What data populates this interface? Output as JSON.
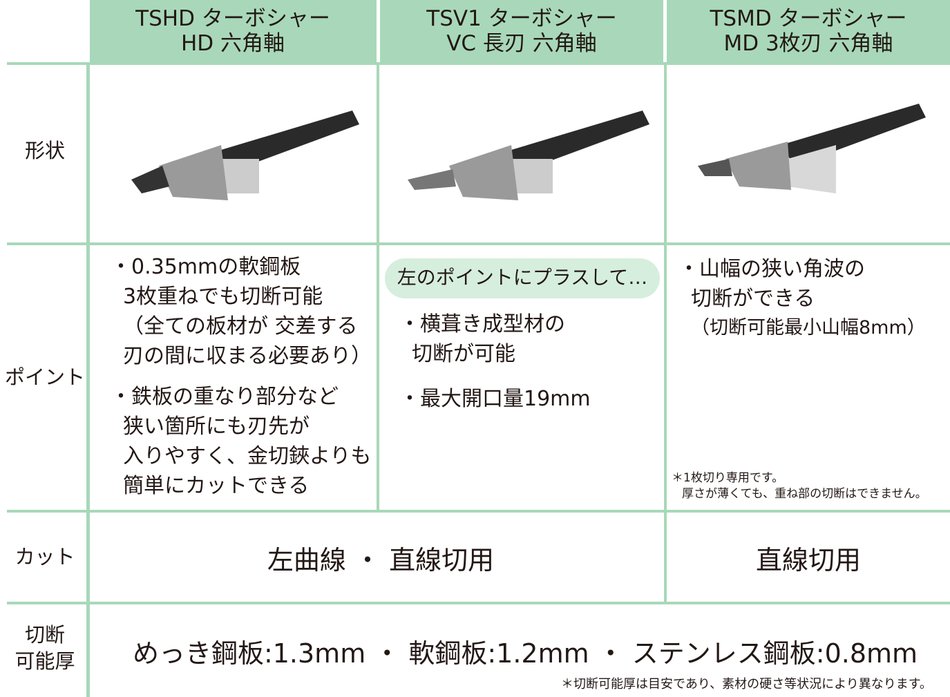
{
  "header": {
    "columns": [
      [
        "TSHD ターボシャー",
        "HD 六角軸"
      ],
      [
        "TSV1 ターボシャー",
        "VC 長刃 六角軸"
      ],
      [
        "TSMD ターボシャー",
        "MD 3枚刃 六角軸"
      ]
    ]
  },
  "rows": {
    "shape": {
      "label": [
        "形状"
      ]
    },
    "points": {
      "label": [
        "ポイント"
      ],
      "cells": [
        {
          "bullets": [
            [
              "・0.35mmの軟鋼板",
              "3枚重ねでも切断可能",
              "（全ての板材が 交差する",
              "刃の間に収まる必要あり）"
            ],
            [
              "・鉄板の重なり部分など",
              "狭い箇所にも刃先が",
              "入りやすく、金切鋏よりも",
              "簡単にカットできる"
            ]
          ]
        },
        {
          "callout": "左のポイントにプラスして…",
          "bullets": [
            [
              "・横葺き成型材の",
              "切断が可能"
            ],
            [
              "・最大開口量19mm"
            ]
          ]
        },
        {
          "bullets": [
            [
              "・山幅の狭い角波の",
              "切断ができる",
              "（切断可能最小山幅8mm）"
            ]
          ],
          "note": [
            "＊1枚切り専用です。",
            "厚さが薄くても、重ね部の切断はできません。"
          ]
        }
      ]
    },
    "cut": {
      "label": [
        "カット"
      ],
      "cells": [
        "左曲線 ・ 直線切用",
        "直線切用"
      ]
    },
    "thickness": {
      "label": [
        "切断",
        "可能厚"
      ],
      "value": "めっき鋼板:1.3mm ・ 軟鋼板:1.2mm ・ ステンレス鋼板:0.8mm",
      "note": "＊切断可能厚は目安であり、素材の硬さ等状況により異なります。"
    }
  }
}
